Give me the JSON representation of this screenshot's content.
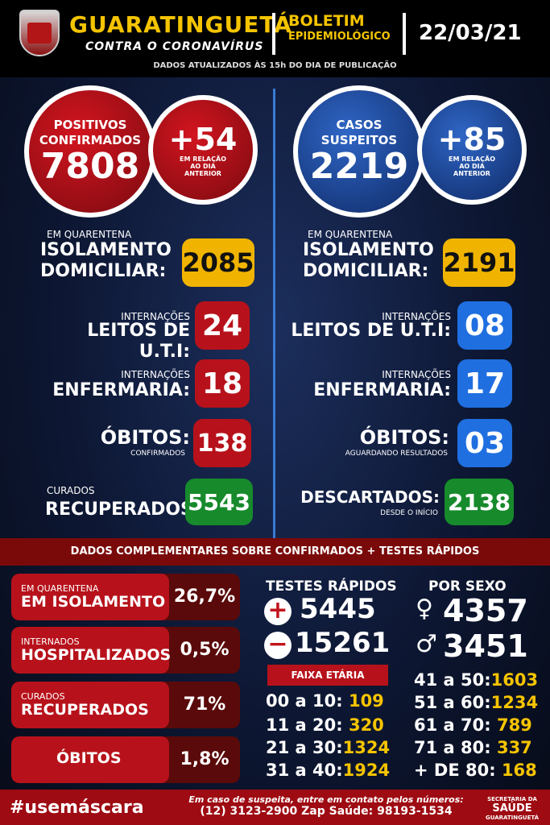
{
  "header": {
    "city": "GUARATINGUETÁ",
    "subtitle": "CONTRA O CORONAVÍRUS",
    "bulletin_1": "BOLETIM",
    "bulletin_2": "EPIDEMIOLÓGICO",
    "date": "22/03/21",
    "updated": "DADOS ATUALIZADOS ÀS 15h DO DIA DE PUBLICAÇÃO"
  },
  "confirmed": {
    "label_1": "POSITIVOS",
    "label_2": "CONFIRMADOS",
    "value": "7808",
    "delta": "+54",
    "delta_note_1": "EM RELAÇÃO",
    "delta_note_2": "AO DIA",
    "delta_note_3": "ANTERIOR"
  },
  "suspected": {
    "label_1": "CASOS",
    "label_2": "SUSPEITOS",
    "value": "2219",
    "delta": "+85",
    "delta_note_1": "EM RELAÇÃO",
    "delta_note_2": "AO DIA",
    "delta_note_3": "ANTERIOR"
  },
  "left": {
    "iso_small": "EM QUARENTENA",
    "iso_1": "ISOLAMENTO",
    "iso_2": "DOMICILIAR:",
    "iso_value": "2085",
    "uti_small": "INTERNAÇÕES",
    "uti_big": "LEITOS DE U.T.I:",
    "uti_value": "24",
    "enf_small": "INTERNAÇÕES",
    "enf_big": "ENFERMARIA:",
    "enf_value": "18",
    "obitos_big": "ÓBITOS:",
    "obitos_small": "CONFIRMADOS",
    "obitos_value": "138",
    "cur_small": "CURADOS",
    "cur_big": "RECUPERADOS:",
    "cur_value": "5543"
  },
  "right": {
    "iso_small": "EM QUARENTENA",
    "iso_1": "ISOLAMENTO",
    "iso_2": "DOMICILIAR:",
    "iso_value": "2191",
    "uti_small": "INTERNAÇÕES",
    "uti_big": "LEITOS DE U.T.I:",
    "uti_value": "08",
    "enf_small": "INTERNAÇÕES",
    "enf_big": "ENFERMARIA:",
    "enf_value": "17",
    "obitos_big": "ÓBITOS:",
    "obitos_small": "AGUARDANDO RESULTADOS",
    "obitos_value": "03",
    "desc_big": "DESCARTADOS:",
    "desc_small": "DESDE O INÍCIO",
    "desc_value": "2138"
  },
  "complementary": {
    "banner": "DADOS COMPLEMENTARES SOBRE CONFIRMADOS + TESTES RÁPIDOS",
    "pills": [
      {
        "small": "EM QUARENTENA",
        "big": "EM ISOLAMENTO",
        "value": "26,7%"
      },
      {
        "small": "INTERNADOS",
        "big": "HOSPITALIZADOS",
        "value": "0,5%"
      },
      {
        "small": "CURADOS",
        "big": "RECUPERADOS",
        "value": "71%"
      },
      {
        "small": "",
        "big": "ÓBITOS",
        "value": "1,8%"
      }
    ],
    "tests": {
      "title": "TESTES RÁPIDOS",
      "positive_sign": "+",
      "positive": "5445",
      "negative_sign": "−",
      "negative": "15261"
    },
    "sex": {
      "title": "POR SEXO",
      "female": "4357",
      "male": "3451",
      "female_icon": "♀",
      "male_icon": "♂"
    },
    "age_title": "FAIXA ETÁRIA",
    "ages_left": [
      {
        "range": "00 a 10:",
        "n": "109"
      },
      {
        "range": "11 a 20:",
        "n": "320"
      },
      {
        "range": "21 a 30:",
        "n": "1324"
      },
      {
        "range": "31 a 40:",
        "n": "1924"
      }
    ],
    "ages_right": [
      {
        "range": "41 a 50:",
        "n": "1603"
      },
      {
        "range": "51 a 60:",
        "n": "1234"
      },
      {
        "range": "61 a 70:",
        "n": "789"
      },
      {
        "range": "71 a 80:",
        "n": "337"
      },
      {
        "range": "+ DE 80:",
        "n": "168"
      }
    ]
  },
  "footer": {
    "hashtag": "#usemáscara",
    "contact": "Em caso de suspeita, entre em contato pelos números:",
    "phones": "(12) 3123-2900 Zap Saúde: 98193-1534",
    "sec_1": "SECRETARIA DA",
    "sec_2": "SAÚDE",
    "sec_3": "GUARATINGUETÁ"
  }
}
